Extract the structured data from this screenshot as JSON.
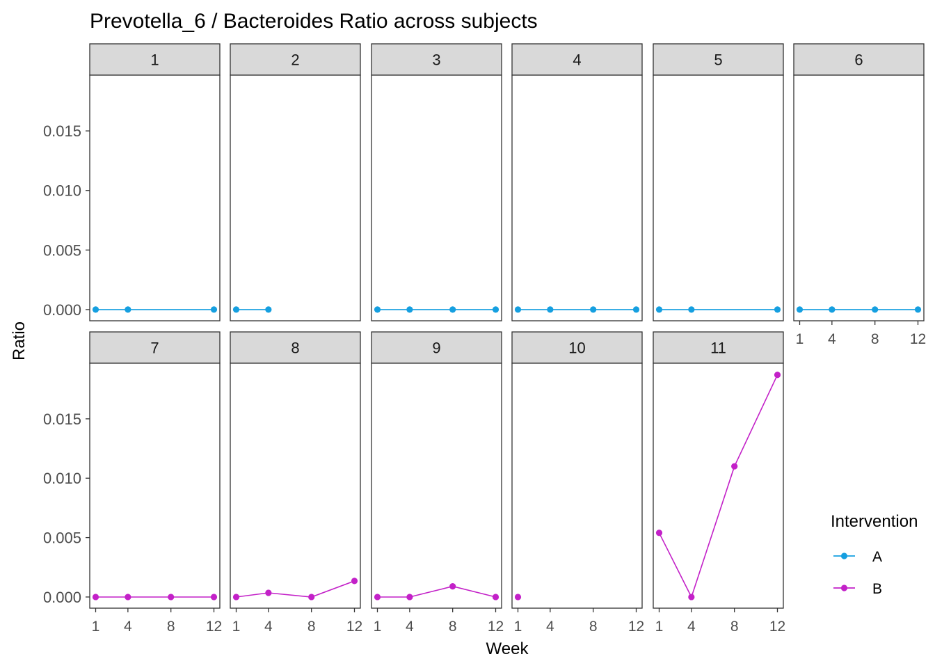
{
  "chart_data": {
    "type": "line",
    "title": "Prevotella_6 / Bacteroides Ratio across subjects",
    "xlabel": "Week",
    "ylabel": "Ratio",
    "x_ticks": [
      1,
      4,
      8,
      12
    ],
    "xlim": [
      0.45,
      12.55
    ],
    "y_ticks": [
      0.0,
      0.005,
      0.01,
      0.015
    ],
    "y_tick_labels": [
      "0.000",
      "0.005",
      "0.010",
      "0.015"
    ],
    "ylim": [
      -0.00094,
      0.01968
    ],
    "grid": false,
    "legend": {
      "title": "Intervention",
      "position": "right",
      "entries": [
        {
          "name": "A",
          "color": "#159fe0"
        },
        {
          "name": "B",
          "color": "#c321c8"
        }
      ]
    },
    "panels": [
      {
        "label": "1",
        "series": "A",
        "points": [
          [
            1,
            0.0
          ],
          [
            4,
            0.0
          ],
          [
            12,
            0.0
          ]
        ]
      },
      {
        "label": "2",
        "series": "A",
        "points": [
          [
            1,
            0.0
          ],
          [
            4,
            0.0
          ]
        ]
      },
      {
        "label": "3",
        "series": "A",
        "points": [
          [
            1,
            0.0
          ],
          [
            4,
            0.0
          ],
          [
            8,
            0.0
          ],
          [
            12,
            0.0
          ]
        ]
      },
      {
        "label": "4",
        "series": "A",
        "points": [
          [
            1,
            0.0
          ],
          [
            4,
            0.0
          ],
          [
            8,
            0.0
          ],
          [
            12,
            0.0
          ]
        ]
      },
      {
        "label": "5",
        "series": "A",
        "points": [
          [
            1,
            0.0
          ],
          [
            4,
            0.0
          ],
          [
            12,
            0.0
          ]
        ]
      },
      {
        "label": "6",
        "series": "A",
        "points": [
          [
            1,
            0.0
          ],
          [
            4,
            0.0
          ],
          [
            8,
            0.0
          ],
          [
            12,
            0.0
          ]
        ]
      },
      {
        "label": "7",
        "series": "B",
        "points": [
          [
            1,
            0.0
          ],
          [
            4,
            0.0
          ],
          [
            8,
            0.0
          ],
          [
            12,
            0.0
          ]
        ]
      },
      {
        "label": "8",
        "series": "B",
        "points": [
          [
            1,
            0.0
          ],
          [
            4,
            0.00035
          ],
          [
            8,
            0.0
          ],
          [
            12,
            0.00135
          ]
        ]
      },
      {
        "label": "9",
        "series": "B",
        "points": [
          [
            1,
            0.0
          ],
          [
            4,
            0.0
          ],
          [
            8,
            0.0009
          ],
          [
            12,
            0.0
          ]
        ]
      },
      {
        "label": "10",
        "series": "B",
        "points": [
          [
            1,
            0.0
          ]
        ]
      },
      {
        "label": "11",
        "series": "B",
        "points": [
          [
            1,
            0.0054
          ],
          [
            4,
            0.0
          ],
          [
            8,
            0.011
          ],
          [
            12,
            0.0187
          ]
        ]
      }
    ]
  }
}
